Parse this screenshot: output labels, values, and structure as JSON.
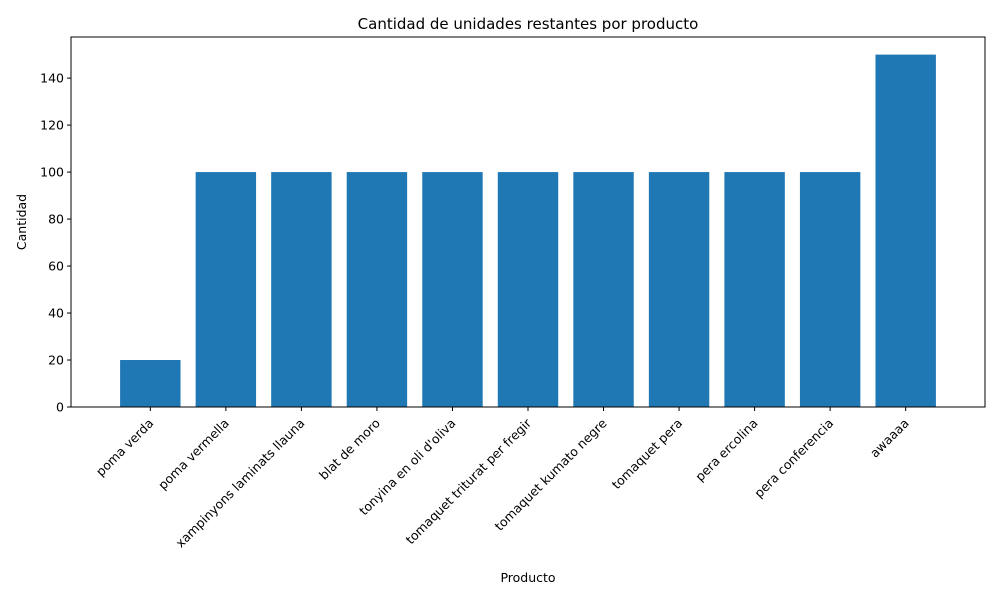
{
  "chart_data": {
    "type": "bar",
    "title": "Cantidad de unidades restantes por producto",
    "xlabel": "Producto",
    "ylabel": "Cantidad",
    "categories": [
      "poma verda",
      "poma vermella",
      "xampinyons laminats llauna",
      "blat de moro",
      "tonyina en oli d'oliva",
      "tomaquet triturat per fregir",
      "tomaquet kumato negre",
      "tomaquet pera",
      "pera ercolina",
      "pera conferencia",
      "awaaaa"
    ],
    "values": [
      20,
      100,
      100,
      100,
      100,
      100,
      100,
      100,
      100,
      100,
      150
    ],
    "ylim": [
      0,
      157.5
    ],
    "yticks": [
      0,
      20,
      40,
      60,
      80,
      100,
      120,
      140
    ],
    "bar_color": "#1f77b4",
    "grid": false,
    "legend": "none"
  }
}
